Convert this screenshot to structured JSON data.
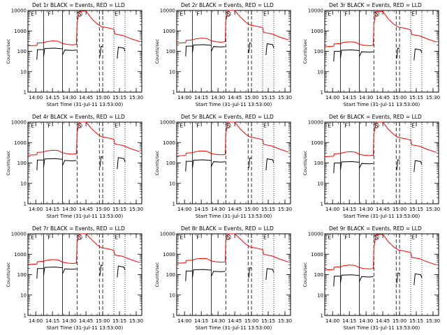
{
  "figure": {
    "x_tick_labels": [
      "14:00",
      "14:15",
      "14:30",
      "14:45",
      "15:00",
      "15:15",
      "15:30"
    ],
    "x_label": "Start Time (31-Jul-11 13:53:00)",
    "y_label": "Counts/sec",
    "y_tick_labels": [
      "1",
      "10",
      "100",
      "1000",
      "10000"
    ],
    "colors": {
      "events": "#000000",
      "lld": "#ff0000"
    }
  },
  "chart_data": [
    {
      "title": "Det 1r BLACK = Events, RED = LLD",
      "type": "line",
      "yscale": "log",
      "ylim": [
        1,
        10000
      ],
      "xlim": [
        "13:53",
        "15:35"
      ],
      "markers": [
        "E",
        "F",
        "S",
        "E"
      ],
      "level": [
        1.0,
        1.0
      ],
      "series": [
        {
          "name": "Events",
          "base": 110
        },
        {
          "name": "LLD",
          "base": 230
        }
      ]
    },
    {
      "title": "Det 2r BLACK = Events, RED = LLD",
      "type": "line",
      "yscale": "log",
      "ylim": [
        1,
        10000
      ],
      "xlim": [
        "13:53",
        "15:35"
      ],
      "markers": [
        "E",
        "F",
        "S",
        "E"
      ],
      "level": [
        1.25,
        1.2
      ],
      "series": [
        {
          "name": "Events",
          "base": 130
        },
        {
          "name": "LLD",
          "base": 260
        }
      ]
    },
    {
      "title": "Det 3r BLACK = Events, RED = LLD",
      "type": "line",
      "yscale": "log",
      "ylim": [
        1,
        10000
      ],
      "xlim": [
        "13:53",
        "15:35"
      ],
      "markers": [
        "E",
        "F",
        "S",
        "E"
      ],
      "level": [
        0.9,
        0.95
      ],
      "series": [
        {
          "name": "Events",
          "base": 100
        },
        {
          "name": "LLD",
          "base": 220
        }
      ]
    },
    {
      "title": "Det 4r BLACK = Events, RED = LLD",
      "type": "line",
      "yscale": "log",
      "ylim": [
        1,
        10000
      ],
      "xlim": [
        "13:53",
        "15:35"
      ],
      "markers": [
        "E",
        "F",
        "S",
        "E"
      ],
      "level": [
        1.1,
        1.2
      ],
      "series": [
        {
          "name": "Events",
          "base": 115
        },
        {
          "name": "LLD",
          "base": 250
        }
      ]
    },
    {
      "title": "Det 5r BLACK = Events, RED = LLD",
      "type": "line",
      "yscale": "log",
      "ylim": [
        1,
        10000
      ],
      "xlim": [
        "13:53",
        "15:35"
      ],
      "markers": [
        "E",
        "F",
        "S",
        "E"
      ],
      "level": [
        1.0,
        1.15
      ],
      "series": [
        {
          "name": "Events",
          "base": 110
        },
        {
          "name": "LLD",
          "base": 240
        }
      ]
    },
    {
      "title": "Det 6r BLACK = Events, RED = LLD",
      "type": "line",
      "yscale": "log",
      "ylim": [
        1,
        10000
      ],
      "xlim": [
        "13:53",
        "15:35"
      ],
      "markers": [
        "E",
        "F",
        "S",
        "E"
      ],
      "level": [
        0.9,
        1.1
      ],
      "series": [
        {
          "name": "Events",
          "base": 100
        },
        {
          "name": "LLD",
          "base": 230
        }
      ]
    },
    {
      "title": "Det 7r BLACK = Events, RED = LLD",
      "type": "line",
      "yscale": "log",
      "ylim": [
        1,
        10000
      ],
      "xlim": [
        "13:53",
        "15:35"
      ],
      "markers": [
        "E",
        "F",
        "S",
        "E"
      ],
      "level": [
        1.3,
        1.3
      ],
      "series": [
        {
          "name": "Events",
          "base": 140
        },
        {
          "name": "LLD",
          "base": 300
        }
      ]
    },
    {
      "title": "Det 8r BLACK = Events, RED = LLD",
      "type": "line",
      "yscale": "log",
      "ylim": [
        1,
        10000
      ],
      "xlim": [
        "13:53",
        "15:35"
      ],
      "markers": [
        "E",
        "F",
        "S",
        "E"
      ],
      "level": [
        1.15,
        1.4
      ],
      "series": [
        {
          "name": "Events",
          "base": 120
        },
        {
          "name": "LLD",
          "base": 320
        }
      ]
    },
    {
      "title": "Det 9r BLACK = Events, RED = LLD",
      "type": "line",
      "yscale": "log",
      "ylim": [
        1,
        10000
      ],
      "xlim": [
        "13:53",
        "15:35"
      ],
      "markers": [
        "E",
        "F",
        "S",
        "E"
      ],
      "level": [
        0.8,
        1.0
      ],
      "series": [
        {
          "name": "Events",
          "base": 95
        },
        {
          "name": "LLD",
          "base": 210
        }
      ]
    }
  ]
}
